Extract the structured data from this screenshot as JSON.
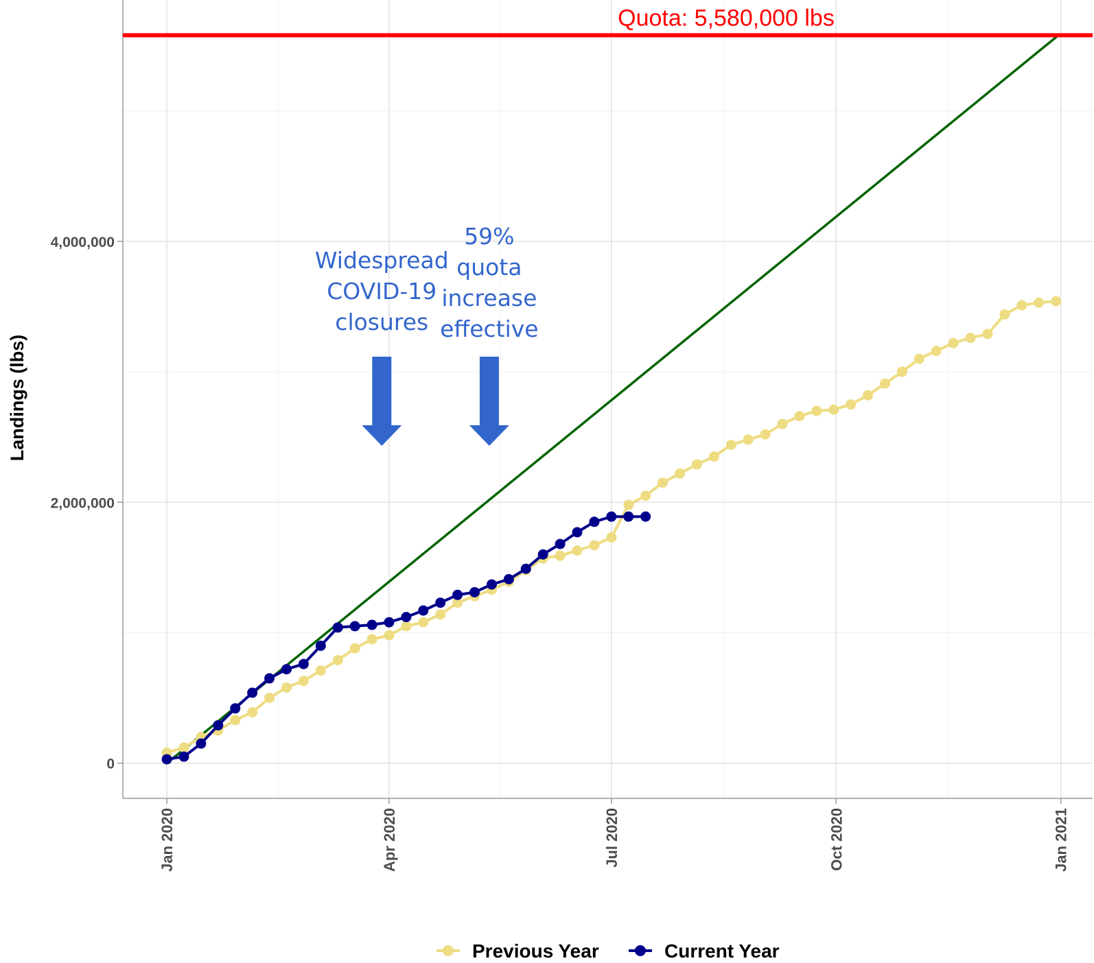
{
  "chart_data": {
    "type": "line",
    "title": "",
    "xlabel": "",
    "ylabel": "Landings (lbs)",
    "x_ticks": [
      "2020-01-01",
      "2020-04-01",
      "2020-07-01",
      "2020-10-01",
      "2021-01-01"
    ],
    "x_tick_labels": [
      "Jan 2020",
      "Apr 2020",
      "Jul 2020",
      "Oct 2020",
      "Jan 2021"
    ],
    "y_ticks": [
      0,
      2000000,
      4000000
    ],
    "y_tick_labels": [
      "0",
      "2,000,000",
      "4,000,000"
    ],
    "ylim": [
      -270000,
      5850000
    ],
    "xlim": [
      "2019-12-14",
      "2021-01-14"
    ],
    "grid": true,
    "legend_position": "bottom",
    "quota": {
      "value": 5580000,
      "label": "Quota: 5,580,000 lbs",
      "color": "#ff0000"
    },
    "target_line": {
      "x": [
        "2020-01-01",
        "2020-12-31"
      ],
      "y": [
        0,
        5580000
      ],
      "color": "#006400"
    },
    "annotations": [
      {
        "lines": [
          "Widespread",
          "COVID-19",
          "closures"
        ],
        "x": "2020-03-29",
        "color": "#3366cc"
      },
      {
        "lines": [
          "59%",
          "quota",
          "increase",
          "effective"
        ],
        "x": "2020-05-12",
        "color": "#3366cc"
      }
    ],
    "series": [
      {
        "name": "Previous Year",
        "color": "#eedc82",
        "x": [
          "2020-01-01",
          "2020-01-08",
          "2020-01-15",
          "2020-01-22",
          "2020-01-29",
          "2020-02-05",
          "2020-02-12",
          "2020-02-19",
          "2020-02-26",
          "2020-03-04",
          "2020-03-11",
          "2020-03-18",
          "2020-03-25",
          "2020-04-01",
          "2020-04-08",
          "2020-04-15",
          "2020-04-22",
          "2020-04-29",
          "2020-05-06",
          "2020-05-13",
          "2020-05-20",
          "2020-05-27",
          "2020-06-03",
          "2020-06-10",
          "2020-06-17",
          "2020-06-24",
          "2020-07-01",
          "2020-07-08",
          "2020-07-15",
          "2020-07-22",
          "2020-07-29",
          "2020-08-05",
          "2020-08-12",
          "2020-08-19",
          "2020-08-26",
          "2020-09-02",
          "2020-09-09",
          "2020-09-16",
          "2020-09-23",
          "2020-09-30",
          "2020-10-07",
          "2020-10-14",
          "2020-10-21",
          "2020-10-28",
          "2020-11-04",
          "2020-11-11",
          "2020-11-18",
          "2020-11-25",
          "2020-12-02",
          "2020-12-09",
          "2020-12-16",
          "2020-12-23",
          "2020-12-30"
        ],
        "values": [
          80000,
          120000,
          200000,
          250000,
          330000,
          390000,
          500000,
          580000,
          630000,
          710000,
          790000,
          880000,
          950000,
          980000,
          1050000,
          1080000,
          1140000,
          1230000,
          1280000,
          1330000,
          1390000,
          1480000,
          1570000,
          1590000,
          1630000,
          1670000,
          1730000,
          1980000,
          2050000,
          2150000,
          2220000,
          2290000,
          2350000,
          2440000,
          2480000,
          2520000,
          2600000,
          2660000,
          2700000,
          2710000,
          2750000,
          2820000,
          2910000,
          3000000,
          3100000,
          3160000,
          3220000,
          3260000,
          3290000,
          3440000,
          3510000,
          3530000,
          3540000
        ]
      },
      {
        "name": "Current Year",
        "color": "#00008b",
        "x": [
          "2020-01-01",
          "2020-01-08",
          "2020-01-15",
          "2020-01-22",
          "2020-01-29",
          "2020-02-05",
          "2020-02-12",
          "2020-02-19",
          "2020-02-26",
          "2020-03-04",
          "2020-03-11",
          "2020-03-18",
          "2020-03-25",
          "2020-04-01",
          "2020-04-08",
          "2020-04-15",
          "2020-04-22",
          "2020-04-29",
          "2020-05-06",
          "2020-05-13",
          "2020-05-20",
          "2020-05-27",
          "2020-06-03",
          "2020-06-10",
          "2020-06-17",
          "2020-06-24",
          "2020-07-01",
          "2020-07-08",
          "2020-07-15"
        ],
        "values": [
          30000,
          50000,
          150000,
          290000,
          420000,
          540000,
          650000,
          720000,
          760000,
          900000,
          1040000,
          1050000,
          1060000,
          1080000,
          1120000,
          1170000,
          1230000,
          1290000,
          1310000,
          1370000,
          1410000,
          1490000,
          1600000,
          1680000,
          1770000,
          1850000,
          1890000,
          1890000,
          1890000
        ]
      }
    ]
  }
}
